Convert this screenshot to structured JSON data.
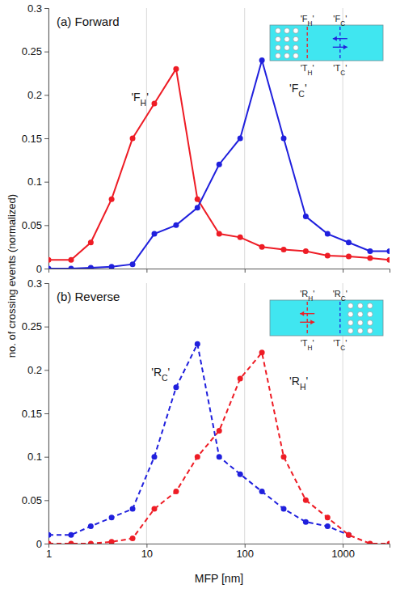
{
  "chart_data": [
    {
      "type": "line",
      "title": "(a) Forward",
      "ylabel": "no. of crossing events (normalized)",
      "log": "x",
      "grid": true,
      "tick_labels": "y",
      "marker": "circle",
      "line_style": "solid",
      "xlim": [
        1,
        3000
      ],
      "xticks": [
        1,
        10,
        100,
        1000
      ],
      "ylim": [
        0,
        0.3
      ],
      "yticks": [
        0,
        0.05,
        0.1,
        0.15,
        0.2,
        0.25,
        0.3
      ],
      "x": [
        1,
        1.7,
        2.7,
        4.4,
        7.2,
        12,
        20,
        33,
        55,
        90,
        150,
        250,
        420,
        700,
        1150,
        1900,
        3000
      ],
      "series": [
        {
          "name": "'FH'",
          "color": "#ee1c25",
          "values": [
            0.01,
            0.01,
            0.03,
            0.08,
            0.15,
            0.19,
            0.23,
            0.08,
            0.04,
            0.036,
            0.025,
            0.022,
            0.02,
            0.015,
            0.014,
            0.012,
            0.01
          ]
        },
        {
          "name": "'FC'",
          "color": "#2020dd",
          "values": [
            0,
            0,
            0.001,
            0.002,
            0.005,
            0.04,
            0.05,
            0.07,
            0.12,
            0.15,
            0.24,
            0.15,
            0.06,
            0.04,
            0.03,
            0.02,
            0.02
          ]
        }
      ],
      "inset": {
        "hot_label": "'FH'",
        "cold_label": "'FC'",
        "hot_plane": "'TH'",
        "cold_plane": "'TC'"
      }
    },
    {
      "type": "line",
      "title": "(b) Reverse",
      "xlabel": "MFP [nm]",
      "log": "x",
      "grid": true,
      "marker": "circle",
      "line_style": "dashed",
      "xlim": [
        1,
        3000
      ],
      "xticks": [
        1,
        10,
        100,
        1000
      ],
      "ylim": [
        0,
        0.3
      ],
      "yticks": [
        0,
        0.05,
        0.1,
        0.15,
        0.2,
        0.25,
        0.3
      ],
      "x": [
        1,
        1.7,
        2.7,
        4.4,
        7.2,
        12,
        20,
        33,
        55,
        90,
        150,
        250,
        420,
        700,
        1150,
        1900,
        3000
      ],
      "series": [
        {
          "name": "'RC'",
          "color": "#2020dd",
          "values": [
            0.01,
            0.01,
            0.02,
            0.03,
            0.04,
            0.1,
            0.18,
            0.23,
            0.1,
            0.08,
            0.06,
            0.04,
            0.025,
            0.02,
            0.01,
            null,
            null
          ]
        },
        {
          "name": "'RH'",
          "color": "#ee1c25",
          "values": [
            0,
            0,
            0,
            0.002,
            0.006,
            0.04,
            0.06,
            0.1,
            0.13,
            0.19,
            0.22,
            0.1,
            0.05,
            0.03,
            0.01,
            0,
            0
          ]
        }
      ],
      "inset": {
        "hot_label": "'RH'",
        "cold_label": "'RC'",
        "hot_plane": "'TH'",
        "cold_plane": "'TC'"
      }
    }
  ]
}
